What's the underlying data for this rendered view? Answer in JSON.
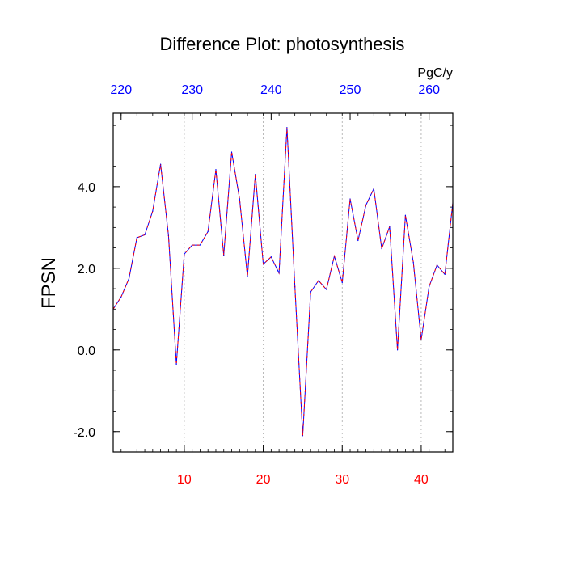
{
  "chart_data": {
    "type": "line",
    "title": "Difference Plot: photosynthesis",
    "ylabel": "FPSN",
    "top_axis_unit": "PgC/y",
    "xlim": [
      1,
      44
    ],
    "ylim": [
      -2.5,
      5.8
    ],
    "y_ticks": [
      {
        "value": -2.0,
        "label": "-2.0"
      },
      {
        "value": 0.0,
        "label": "0.0"
      },
      {
        "value": 2.0,
        "label": "2.0"
      },
      {
        "value": 4.0,
        "label": "4.0"
      }
    ],
    "x_ticks_bottom": [
      {
        "value": 10,
        "label": "10"
      },
      {
        "value": 20,
        "label": "20"
      },
      {
        "value": 30,
        "label": "30"
      },
      {
        "value": 40,
        "label": "40"
      }
    ],
    "x_ticks_top": [
      {
        "value": 2,
        "label": "220"
      },
      {
        "value": 11,
        "label": "230"
      },
      {
        "value": 21,
        "label": "240"
      },
      {
        "value": 31,
        "label": "250"
      },
      {
        "value": 41,
        "label": "260"
      }
    ],
    "grid_x_values": [
      10,
      20,
      30,
      40
    ],
    "colors": {
      "bottom_ticks": "#ff0000",
      "top_ticks": "#0000ff",
      "line_solid": "#0000ff",
      "line_dashed": "#ff0000",
      "axes": "#000000",
      "grid": "#aaaaaa"
    },
    "x": [
      1,
      2,
      3,
      4,
      5,
      6,
      7,
      8,
      9,
      10,
      11,
      12,
      13,
      14,
      15,
      16,
      17,
      18,
      19,
      20,
      21,
      22,
      23,
      24,
      25,
      26,
      27,
      28,
      29,
      30,
      31,
      32,
      33,
      34,
      35,
      36,
      37,
      38,
      39,
      40,
      41,
      42,
      43,
      44
    ],
    "series": [
      {
        "values": [
          1.0,
          1.3,
          1.75,
          2.75,
          2.82,
          3.4,
          4.55,
          2.8,
          -0.35,
          2.35,
          2.57,
          2.57,
          2.9,
          4.42,
          2.32,
          4.85,
          3.7,
          1.8,
          4.3,
          2.1,
          2.28,
          1.88,
          5.45,
          1.55,
          -2.1,
          1.42,
          1.7,
          1.48,
          2.3,
          1.65,
          3.7,
          2.68,
          3.55,
          3.95,
          2.48,
          3.02,
          0.0,
          3.3,
          2.15,
          0.25,
          1.55,
          2.08,
          1.85,
          3.6
        ]
      }
    ]
  }
}
